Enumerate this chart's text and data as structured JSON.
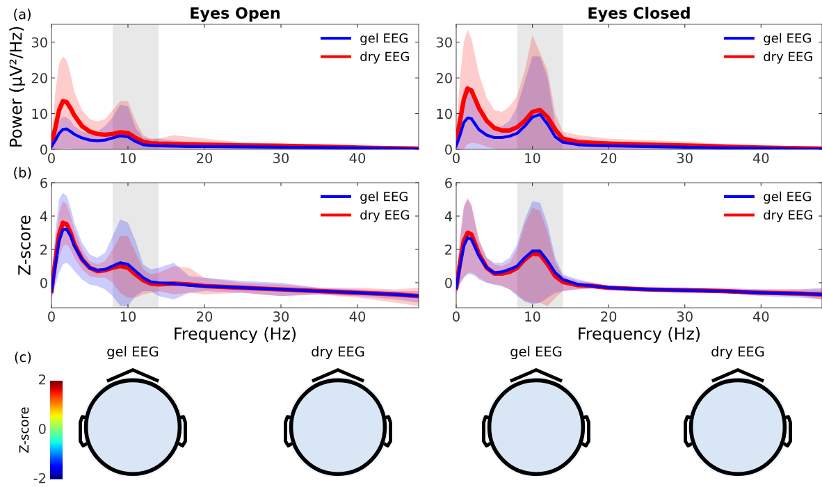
{
  "chart_data": [
    {
      "type": "line",
      "title": "Eyes Open",
      "ylabel": "Power (μV²/Hz)",
      "annotations": [
        "(a)"
      ],
      "x": [
        0,
        0.5,
        1,
        1.5,
        2,
        2.5,
        3,
        4,
        5,
        6,
        7,
        8,
        9,
        10,
        11,
        12,
        13,
        14,
        16,
        18,
        20,
        25,
        30,
        35,
        40,
        45,
        48
      ],
      "xlim": [
        0,
        48
      ],
      "xticks": [
        0,
        10,
        20,
        30,
        40
      ],
      "ylim": [
        0,
        35
      ],
      "yticks": [
        0,
        10,
        20,
        30
      ],
      "legend": "top right",
      "bands": [
        {
          "axis": "x",
          "from": 8,
          "to": 14,
          "color": "#e8e8e8"
        }
      ],
      "series": [
        {
          "name": "gel EEG",
          "color": "#0000ff",
          "values": [
            0.8,
            2.5,
            4.5,
            5.6,
            5.7,
            5,
            4.2,
            3.2,
            2.6,
            2.4,
            2.6,
            3.2,
            3.8,
            3.5,
            2.2,
            1.3,
            1.1,
            1,
            0.9,
            0.8,
            0.8,
            0.7,
            0.6,
            0.5,
            0.4,
            0.2,
            0.1
          ],
          "lower": [
            0,
            0,
            0,
            0,
            0,
            0,
            0,
            0,
            0,
            0,
            0,
            0,
            0,
            0,
            0,
            0,
            0,
            0,
            0,
            0,
            0,
            0,
            0,
            0,
            0,
            0,
            0
          ],
          "upper": [
            1.5,
            5,
            8,
            9.2,
            9,
            8,
            6.5,
            5,
            4.5,
            5,
            6.5,
            9,
            12.5,
            12,
            6,
            3.2,
            2.8,
            3,
            2.5,
            2,
            2,
            1.8,
            1.6,
            1,
            0.7,
            0.3,
            0.2
          ]
        },
        {
          "name": "dry EEG",
          "color": "#ff0000",
          "values": [
            1.5,
            6,
            11,
            13.5,
            13.2,
            11.5,
            9.5,
            6.5,
            5,
            4.3,
            4.1,
            4.3,
            4.8,
            4.6,
            3.2,
            2.1,
            1.7,
            1.6,
            1.5,
            1.4,
            1.3,
            1.1,
            1,
            0.8,
            0.5,
            0.3,
            0.2
          ],
          "lower": [
            0,
            0,
            0,
            0.3,
            0.4,
            0.3,
            0.2,
            0.1,
            0,
            0,
            0,
            0,
            0,
            0,
            0,
            0,
            0,
            0,
            0,
            0,
            0,
            0,
            0,
            0,
            0,
            0,
            0
          ],
          "upper": [
            3,
            16,
            24,
            26,
            25,
            21,
            16,
            11,
            8.5,
            7.8,
            8.5,
            11,
            13.5,
            13.5,
            8,
            4,
            3,
            3,
            4,
            3.5,
            3,
            2,
            1.8,
            1.2,
            0.8,
            0.4,
            0.3
          ]
        }
      ]
    },
    {
      "type": "line",
      "title": "Eyes Closed",
      "x": [
        0,
        0.5,
        1,
        1.5,
        2,
        2.5,
        3,
        4,
        5,
        6,
        7,
        8,
        9,
        10,
        11,
        12,
        13,
        14,
        16,
        18,
        20,
        25,
        30,
        35,
        40,
        45,
        48
      ],
      "xlim": [
        0,
        48
      ],
      "xticks": [
        0,
        10,
        20,
        30,
        40
      ],
      "ylim": [
        0,
        35
      ],
      "yticks": [
        0,
        10,
        20,
        30
      ],
      "legend": "top right",
      "bands": [
        {
          "axis": "x",
          "from": 8,
          "to": 14,
          "color": "#e8e8e8"
        }
      ],
      "series": [
        {
          "name": "gel EEG",
          "color": "#0000ff",
          "values": [
            1,
            4,
            7.5,
            8.8,
            8.6,
            7,
            5.5,
            4,
            3.3,
            3.3,
            3.7,
            4.5,
            6.5,
            9,
            9.8,
            7,
            3.5,
            2,
            1.3,
            1.1,
            1,
            0.8,
            0.6,
            0.4,
            0.3,
            0.1,
            0.1
          ],
          "lower": [
            0,
            0,
            0,
            0,
            0,
            0,
            0,
            0,
            0,
            0,
            0,
            0,
            0,
            0,
            0,
            0,
            0,
            0,
            0,
            0,
            0,
            0,
            0,
            0,
            0,
            0,
            0
          ],
          "upper": [
            2,
            10,
            17,
            18,
            17,
            14,
            11,
            7,
            6,
            6.5,
            8,
            12,
            19,
            26,
            26,
            20,
            7,
            3.5,
            3,
            2.5,
            2.2,
            1.8,
            1.4,
            0.8,
            0.5,
            0.2,
            0.1
          ]
        },
        {
          "name": "dry EEG",
          "color": "#ff0000",
          "values": [
            2,
            8,
            14,
            17,
            16.5,
            14,
            11.5,
            8,
            6,
            5.3,
            5.3,
            6.2,
            8,
            10.5,
            11,
            9,
            5.5,
            3,
            2,
            1.8,
            1.6,
            1.3,
            1.1,
            0.8,
            0.5,
            0.3,
            0.2
          ],
          "lower": [
            0,
            0,
            0,
            1.5,
            1.8,
            1.8,
            1.5,
            0.8,
            0.2,
            0,
            0,
            0,
            0,
            0,
            0,
            0,
            0,
            0,
            0,
            0,
            0,
            0,
            0,
            0,
            0,
            0,
            0
          ],
          "upper": [
            5,
            20,
            30,
            33.5,
            31,
            26,
            21,
            14.5,
            11,
            10.5,
            12,
            15,
            22,
            32,
            27,
            22,
            10,
            5,
            4,
            3.5,
            3,
            2.6,
            2.2,
            1.5,
            0.8,
            0.4,
            0.3
          ]
        }
      ]
    },
    {
      "type": "line",
      "xlabel": "Frequency (Hz)",
      "ylabel": "Z-score",
      "annotations": [
        "(b)"
      ],
      "x": [
        0,
        0.5,
        1,
        1.5,
        2,
        2.5,
        3,
        4,
        5,
        6,
        7,
        8,
        9,
        10,
        11,
        12,
        13,
        14,
        16,
        18,
        20,
        25,
        30,
        35,
        40,
        45,
        48
      ],
      "xlim": [
        0,
        48
      ],
      "xticks": [
        0,
        10,
        20,
        30,
        40
      ],
      "ylim": [
        -1.5,
        6
      ],
      "yticks": [
        0,
        2,
        4,
        6
      ],
      "legend": "top right",
      "bands": [
        {
          "axis": "x",
          "from": 8,
          "to": 14,
          "color": "#e8e8e8"
        }
      ],
      "series": [
        {
          "name": "gel EEG",
          "color": "#0000ff",
          "values": [
            -0.5,
            1,
            2.5,
            3.2,
            3.2,
            2.8,
            2.2,
            1.4,
            0.9,
            0.75,
            0.8,
            1,
            1.2,
            1.1,
            0.7,
            0.3,
            0.05,
            0,
            -0.05,
            -0.15,
            -0.2,
            -0.3,
            -0.4,
            -0.5,
            -0.6,
            -0.7,
            -0.8
          ],
          "lower": [
            -1,
            -0.2,
            0.6,
            1.1,
            1.2,
            1,
            0.7,
            0.2,
            -0.1,
            -0.2,
            -0.4,
            -0.8,
            -1.4,
            -1.4,
            -0.8,
            -0.5,
            -0.5,
            -0.8,
            -1,
            -0.6,
            -0.5,
            -0.6,
            -0.8,
            -0.7,
            -0.8,
            -1,
            -1.2
          ],
          "upper": [
            0,
            3,
            5,
            5.4,
            5.2,
            4.5,
            3.6,
            2.4,
            1.7,
            1.5,
            1.8,
            2.8,
            3.8,
            3.6,
            2.5,
            1.1,
            0.8,
            0.9,
            1.2,
            0.4,
            0.3,
            0.1,
            0,
            -0.3,
            -0.4,
            -0.5,
            -0.5
          ]
        },
        {
          "name": "dry EEG",
          "color": "#ff0000",
          "values": [
            -0.5,
            1.3,
            2.9,
            3.6,
            3.5,
            3,
            2.3,
            1.4,
            0.9,
            0.7,
            0.75,
            0.9,
            1,
            0.9,
            0.5,
            0.15,
            -0.05,
            -0.1,
            -0.05,
            -0.1,
            -0.2,
            -0.3,
            -0.4,
            -0.5,
            -0.6,
            -0.7,
            -0.8
          ],
          "lower": [
            -1,
            0.2,
            1.5,
            2.2,
            2.3,
            2,
            1.5,
            0.8,
            0.4,
            0.3,
            0.3,
            0,
            -0.6,
            -0.9,
            -0.9,
            -0.7,
            -0.6,
            -0.5,
            -0.7,
            -0.6,
            -0.7,
            -0.6,
            -0.8,
            -0.7,
            -0.9,
            -1.2,
            -1.4
          ],
          "upper": [
            0,
            2.5,
            4.2,
            4.9,
            4.7,
            4,
            3.2,
            2,
            1.3,
            1.1,
            1.3,
            2,
            2.8,
            2.8,
            1.8,
            0.8,
            0.5,
            0.6,
            1,
            0.9,
            0.3,
            0,
            -0.1,
            -0.3,
            -0.3,
            -0.4,
            -0.3
          ]
        }
      ]
    },
    {
      "type": "line",
      "xlabel": "Frequency (Hz)",
      "x": [
        0,
        0.5,
        1,
        1.5,
        2,
        2.5,
        3,
        4,
        5,
        6,
        7,
        8,
        9,
        10,
        11,
        12,
        13,
        14,
        16,
        18,
        20,
        25,
        30,
        35,
        40,
        45,
        48
      ],
      "xlim": [
        0,
        48
      ],
      "xticks": [
        0,
        10,
        20,
        30,
        40
      ],
      "ylim": [
        -1.5,
        6
      ],
      "yticks": [
        0,
        2,
        4,
        6
      ],
      "legend": "top right",
      "bands": [
        {
          "axis": "x",
          "from": 8,
          "to": 14,
          "color": "#e8e8e8"
        }
      ],
      "series": [
        {
          "name": "gel EEG",
          "color": "#0000ff",
          "values": [
            -0.3,
            1,
            2.2,
            2.7,
            2.6,
            2.1,
            1.6,
            0.9,
            0.6,
            0.65,
            0.8,
            1,
            1.5,
            1.9,
            1.9,
            1.3,
            0.6,
            0.2,
            -0.1,
            -0.2,
            -0.3,
            -0.4,
            -0.45,
            -0.5,
            -0.6,
            -0.65,
            -0.7
          ],
          "lower": [
            -0.7,
            -0.1,
            0.3,
            0.5,
            0.5,
            0.4,
            0.2,
            0,
            -0.1,
            -0.2,
            -0.4,
            -0.8,
            -1.1,
            -1.3,
            -1.2,
            -0.9,
            -0.6,
            -0.5,
            -0.4,
            -0.3,
            -0.35,
            -0.5,
            -0.55,
            -0.6,
            -0.8,
            -0.9,
            -1
          ],
          "upper": [
            0,
            2.5,
            4.5,
            5,
            4.6,
            3.5,
            2.5,
            1.5,
            1.2,
            1.2,
            1.5,
            2.3,
            3.8,
            4.9,
            4.8,
            3.5,
            1.5,
            0.5,
            0.2,
            0,
            -0.2,
            -0.3,
            -0.3,
            -0.4,
            -0.4,
            -0.4,
            -0.3
          ]
        },
        {
          "name": "dry EEG",
          "color": "#ff0000",
          "values": [
            -0.3,
            1.2,
            2.5,
            3,
            2.9,
            2.3,
            1.7,
            0.9,
            0.55,
            0.55,
            0.65,
            0.9,
            1.4,
            1.75,
            1.7,
            1.1,
            0.4,
            0.05,
            -0.15,
            -0.2,
            -0.3,
            -0.4,
            -0.45,
            -0.5,
            -0.6,
            -0.65,
            -0.7
          ],
          "lower": [
            -0.7,
            0,
            0.3,
            0.6,
            0.6,
            0.5,
            0.3,
            0,
            -0.1,
            -0.2,
            -0.4,
            -0.7,
            -1.1,
            -1.2,
            -1.2,
            -1.4,
            -0.9,
            -0.5,
            -0.4,
            -0.35,
            -0.4,
            -0.5,
            -0.55,
            -0.6,
            -0.7,
            -0.8,
            -1
          ],
          "upper": [
            0,
            2.8,
            4.6,
            5.1,
            4.7,
            3.7,
            2.6,
            1.5,
            1.1,
            1,
            1.2,
            2,
            3.5,
            4.5,
            4.3,
            3,
            1.2,
            0.4,
            0.1,
            0,
            -0.2,
            -0.3,
            -0.3,
            -0.3,
            -0.4,
            -0.4,
            -0.4
          ]
        }
      ]
    },
    {
      "type": "other",
      "title": "gel EEG",
      "annotations": [
        "(c)",
        "Z-score",
        "2",
        "0",
        "-2"
      ]
    },
    {
      "type": "other",
      "title": "dry EEG"
    },
    {
      "type": "other",
      "title": "gel EEG"
    },
    {
      "type": "other",
      "title": "dry EEG"
    }
  ]
}
